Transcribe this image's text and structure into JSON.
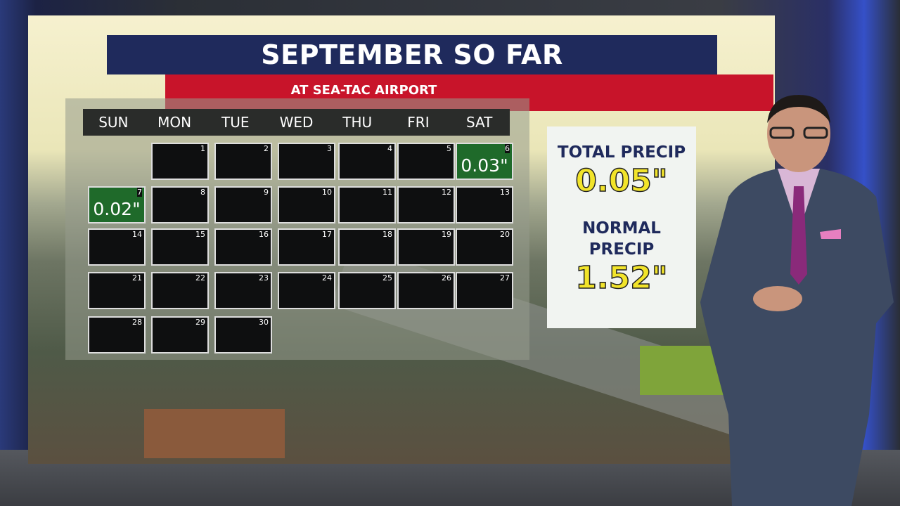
{
  "title": "SEPTEMBER SO FAR",
  "subtitle": "AT SEA-TAC AIRPORT",
  "weekdays": [
    "SUN",
    "MON",
    "TUE",
    "WED",
    "THU",
    "FRI",
    "SAT"
  ],
  "days": [
    {
      "n": "1",
      "col": 1,
      "row": 0,
      "amt": ""
    },
    {
      "n": "2",
      "col": 2,
      "row": 0,
      "amt": ""
    },
    {
      "n": "3",
      "col": 3,
      "row": 0,
      "amt": ""
    },
    {
      "n": "4",
      "col": 4,
      "row": 0,
      "amt": ""
    },
    {
      "n": "5",
      "col": 5,
      "row": 0,
      "amt": ""
    },
    {
      "n": "6",
      "col": 6,
      "row": 0,
      "amt": "0.03\""
    },
    {
      "n": "7",
      "col": 0,
      "row": 1,
      "amt": "0.02\""
    },
    {
      "n": "8",
      "col": 1,
      "row": 1,
      "amt": ""
    },
    {
      "n": "9",
      "col": 2,
      "row": 1,
      "amt": ""
    },
    {
      "n": "10",
      "col": 3,
      "row": 1,
      "amt": ""
    },
    {
      "n": "11",
      "col": 4,
      "row": 1,
      "amt": ""
    },
    {
      "n": "12",
      "col": 5,
      "row": 1,
      "amt": ""
    },
    {
      "n": "13",
      "col": 6,
      "row": 1,
      "amt": ""
    },
    {
      "n": "14",
      "col": 0,
      "row": 2,
      "amt": ""
    },
    {
      "n": "15",
      "col": 1,
      "row": 2,
      "amt": ""
    },
    {
      "n": "16",
      "col": 2,
      "row": 2,
      "amt": ""
    },
    {
      "n": "17",
      "col": 3,
      "row": 2,
      "amt": ""
    },
    {
      "n": "18",
      "col": 4,
      "row": 2,
      "amt": ""
    },
    {
      "n": "19",
      "col": 5,
      "row": 2,
      "amt": ""
    },
    {
      "n": "20",
      "col": 6,
      "row": 2,
      "amt": ""
    },
    {
      "n": "21",
      "col": 0,
      "row": 3,
      "amt": ""
    },
    {
      "n": "22",
      "col": 1,
      "row": 3,
      "amt": ""
    },
    {
      "n": "23",
      "col": 2,
      "row": 3,
      "amt": ""
    },
    {
      "n": "24",
      "col": 3,
      "row": 3,
      "amt": ""
    },
    {
      "n": "25",
      "col": 4,
      "row": 3,
      "amt": ""
    },
    {
      "n": "26",
      "col": 5,
      "row": 3,
      "amt": ""
    },
    {
      "n": "27",
      "col": 6,
      "row": 3,
      "amt": ""
    },
    {
      "n": "28",
      "col": 0,
      "row": 4,
      "amt": ""
    },
    {
      "n": "29",
      "col": 1,
      "row": 4,
      "amt": ""
    },
    {
      "n": "30",
      "col": 2,
      "row": 4,
      "amt": ""
    }
  ],
  "stats": {
    "total_label": "TOTAL PRECIP",
    "total_value": "0.05\"",
    "normal_label_1": "NORMAL",
    "normal_label_2": "PRECIP",
    "normal_value": "1.52\""
  },
  "colors": {
    "navy": "#1f2a5c",
    "red": "#c8142a",
    "rain_cell": "#1f6a2a",
    "value_yellow": "#f2e42a"
  }
}
